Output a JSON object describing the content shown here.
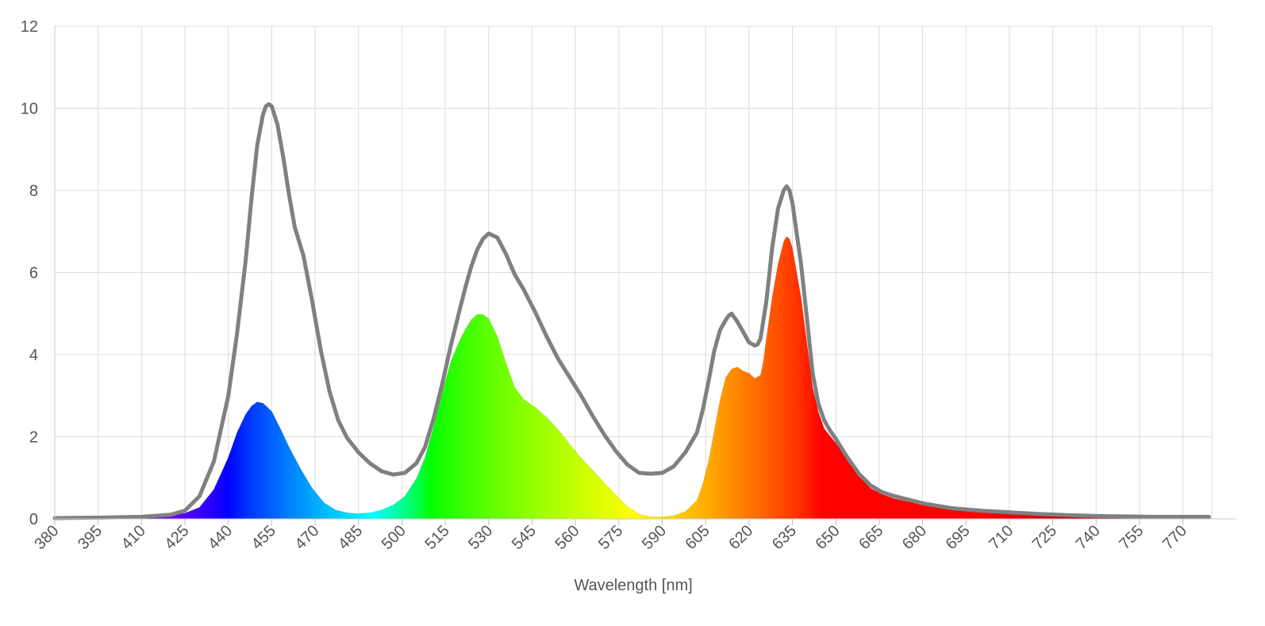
{
  "chart_data": {
    "type": "area",
    "title": "",
    "xlabel": "Wavelength [nm]",
    "ylabel": "",
    "xlim": [
      380,
      780
    ],
    "ylim": [
      0,
      12
    ],
    "grid": true,
    "legend": "none",
    "y_ticks": [
      "0",
      "2",
      "4",
      "6",
      "8",
      "10",
      "12"
    ],
    "x_ticks": [
      "380",
      "395",
      "410",
      "425",
      "440",
      "455",
      "470",
      "485",
      "500",
      "515",
      "530",
      "545",
      "560",
      "575",
      "590",
      "605",
      "620",
      "635",
      "650",
      "665",
      "680",
      "695",
      "710",
      "725",
      "740",
      "755",
      "770"
    ],
    "series": [
      {
        "kind": "spectral-fill",
        "x": [
          380,
          390,
          400,
          410,
          415,
          420,
          425,
          430,
          435,
          440,
          443,
          446,
          448,
          450,
          452,
          455,
          458,
          461,
          465,
          469,
          473,
          477,
          481,
          485,
          489,
          493,
          497,
          501,
          505,
          508,
          511,
          514,
          517,
          520,
          522,
          524,
          526,
          528,
          530,
          533,
          536,
          539,
          542,
          546,
          550,
          554,
          558,
          562,
          566,
          570,
          574,
          578,
          582,
          586,
          590,
          594,
          598,
          602,
          604,
          606,
          608,
          610,
          612,
          614,
          616,
          618,
          620,
          622,
          624,
          625,
          626,
          628,
          630,
          632,
          633,
          634,
          635,
          636,
          638,
          640,
          642,
          644,
          646,
          648,
          650,
          654,
          658,
          662,
          666,
          670,
          675,
          680,
          690,
          700,
          710,
          720,
          730,
          740,
          750,
          760,
          770,
          779
        ],
        "y": [
          0.02,
          0.03,
          0.04,
          0.05,
          0.06,
          0.09,
          0.14,
          0.28,
          0.72,
          1.5,
          2.1,
          2.55,
          2.75,
          2.85,
          2.82,
          2.62,
          2.2,
          1.75,
          1.22,
          0.75,
          0.4,
          0.22,
          0.15,
          0.13,
          0.15,
          0.22,
          0.34,
          0.55,
          0.98,
          1.5,
          2.25,
          3.1,
          3.85,
          4.35,
          4.62,
          4.85,
          4.98,
          4.98,
          4.88,
          4.45,
          3.8,
          3.2,
          2.92,
          2.72,
          2.48,
          2.18,
          1.82,
          1.48,
          1.18,
          0.88,
          0.58,
          0.3,
          0.12,
          0.05,
          0.05,
          0.08,
          0.18,
          0.45,
          0.85,
          1.4,
          2.15,
          2.9,
          3.45,
          3.65,
          3.7,
          3.6,
          3.55,
          3.42,
          3.5,
          3.85,
          4.4,
          5.4,
          6.2,
          6.75,
          6.88,
          6.82,
          6.6,
          6.2,
          5.4,
          4.3,
          3.2,
          2.6,
          2.2,
          2.02,
          1.85,
          1.45,
          1.05,
          0.75,
          0.6,
          0.5,
          0.42,
          0.35,
          0.25,
          0.18,
          0.14,
          0.11,
          0.09,
          0.07,
          0.06,
          0.05,
          0.05,
          0.04
        ]
      },
      {
        "kind": "outline",
        "color": "#808080",
        "x": [
          380,
          395,
          410,
          420,
          425,
          430,
          435,
          440,
          443,
          446,
          448,
          450,
          452,
          453,
          454,
          455,
          457,
          459,
          461,
          463,
          466,
          469,
          472,
          475,
          478,
          481,
          485,
          489,
          493,
          497,
          501,
          505,
          508,
          511,
          514,
          517,
          520,
          522,
          524,
          526,
          528,
          530,
          533,
          536,
          539,
          542,
          546,
          550,
          554,
          558,
          562,
          566,
          570,
          574,
          578,
          582,
          586,
          590,
          594,
          598,
          602,
          604,
          606,
          608,
          610,
          612,
          613,
          614,
          616,
          618,
          620,
          622,
          623,
          624,
          626,
          628,
          630,
          632,
          633,
          634,
          635,
          636,
          638,
          640,
          642,
          644,
          646,
          648,
          650,
          654,
          658,
          662,
          666,
          670,
          675,
          680,
          690,
          700,
          710,
          720,
          730,
          740,
          750,
          760,
          770,
          779
        ],
        "y": [
          0.02,
          0.03,
          0.05,
          0.1,
          0.2,
          0.55,
          1.4,
          3.0,
          4.5,
          6.3,
          7.8,
          9.1,
          9.85,
          10.05,
          10.1,
          10.05,
          9.6,
          8.8,
          7.9,
          7.1,
          6.4,
          5.3,
          4.1,
          3.1,
          2.4,
          1.98,
          1.62,
          1.35,
          1.16,
          1.08,
          1.12,
          1.35,
          1.75,
          2.45,
          3.3,
          4.25,
          5.1,
          5.65,
          6.15,
          6.55,
          6.82,
          6.95,
          6.85,
          6.45,
          5.95,
          5.6,
          5.05,
          4.45,
          3.9,
          3.45,
          3.0,
          2.5,
          2.05,
          1.65,
          1.32,
          1.12,
          1.1,
          1.12,
          1.28,
          1.62,
          2.1,
          2.65,
          3.35,
          4.1,
          4.6,
          4.85,
          4.95,
          5.0,
          4.8,
          4.55,
          4.3,
          4.22,
          4.25,
          4.4,
          5.3,
          6.6,
          7.55,
          8.0,
          8.1,
          8.0,
          7.7,
          7.2,
          6.2,
          4.9,
          3.55,
          2.8,
          2.4,
          2.15,
          1.95,
          1.5,
          1.1,
          0.82,
          0.65,
          0.56,
          0.47,
          0.38,
          0.26,
          0.2,
          0.16,
          0.12,
          0.09,
          0.07,
          0.06,
          0.05,
          0.05,
          0.05
        ]
      }
    ]
  }
}
